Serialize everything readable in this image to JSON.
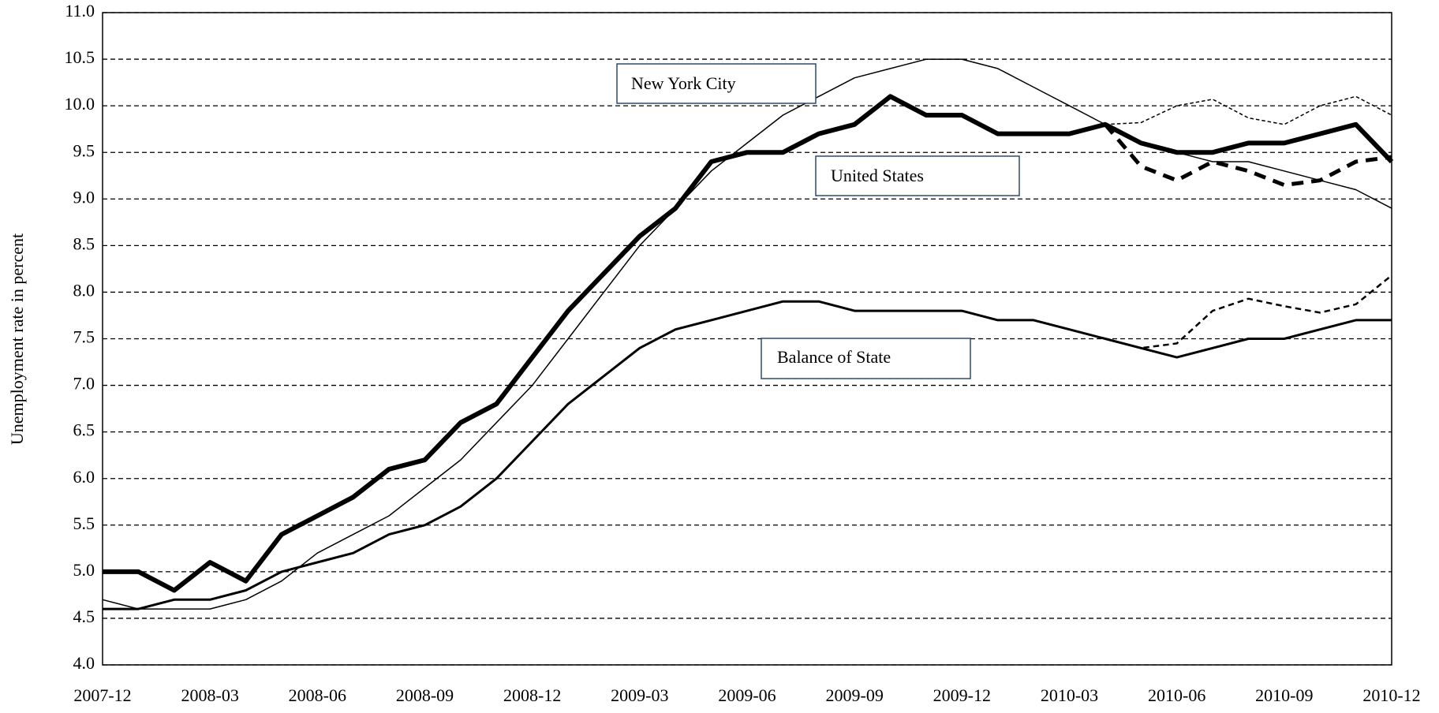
{
  "chart_data": {
    "type": "line",
    "y_label": "Unemployment rate in percent",
    "categories": [
      "2007-12",
      null,
      null,
      "2008-03",
      null,
      null,
      "2008-06",
      null,
      null,
      "2008-09",
      null,
      null,
      "2008-12",
      null,
      null,
      "2009-03",
      null,
      null,
      "2009-06",
      null,
      null,
      "2009-09",
      null,
      null,
      "2009-12",
      null,
      null,
      "2010-03",
      null,
      null,
      "2010-06",
      null,
      null,
      "2010-09",
      null,
      null,
      "2010-12"
    ],
    "series": [
      {
        "name": "United States",
        "color": "#000000",
        "width": 6,
        "dashed": false,
        "values": [
          5.0,
          5.0,
          4.8,
          5.1,
          4.9,
          5.4,
          5.6,
          5.8,
          6.1,
          6.2,
          6.6,
          6.8,
          7.3,
          7.8,
          8.2,
          8.6,
          8.9,
          9.4,
          9.5,
          9.5,
          9.7,
          9.8,
          10.1,
          9.9,
          9.9,
          9.7,
          9.7,
          9.7,
          9.8,
          9.6,
          9.5,
          9.5,
          9.6,
          9.6,
          9.7,
          9.8,
          9.4
        ]
      },
      {
        "name": "New York City",
        "color": "#000000",
        "width": 1.5,
        "dashed": false,
        "values": [
          4.7,
          4.6,
          4.6,
          4.6,
          4.7,
          4.9,
          5.2,
          5.4,
          5.6,
          5.9,
          6.2,
          6.6,
          7.0,
          7.5,
          8.0,
          8.5,
          8.9,
          9.3,
          9.6,
          9.9,
          10.1,
          10.3,
          10.4,
          10.5,
          10.5,
          10.4,
          10.2,
          10.0,
          9.8,
          9.6,
          9.5,
          9.4,
          9.4,
          9.3,
          9.2,
          9.1,
          8.9
        ]
      },
      {
        "name": "Balance of State",
        "color": "#000000",
        "width": 3,
        "dashed": false,
        "values": [
          4.6,
          4.6,
          4.7,
          4.7,
          4.8,
          5.0,
          5.1,
          5.2,
          5.4,
          5.5,
          5.7,
          6.0,
          6.4,
          6.8,
          7.1,
          7.4,
          7.6,
          7.7,
          7.8,
          7.9,
          7.9,
          7.8,
          7.8,
          7.8,
          7.8,
          7.7,
          7.7,
          7.6,
          7.5,
          7.4,
          7.3,
          7.4,
          7.5,
          7.5,
          7.6,
          7.7,
          7.7
        ]
      },
      {
        "color": "#000000",
        "width": 5,
        "dashed": true,
        "values": [
          null,
          null,
          null,
          null,
          null,
          null,
          null,
          null,
          null,
          null,
          null,
          null,
          null,
          null,
          null,
          null,
          null,
          null,
          null,
          null,
          null,
          null,
          null,
          null,
          null,
          null,
          null,
          null,
          9.8,
          9.35,
          9.2,
          9.4,
          9.3,
          9.15,
          9.2,
          9.4,
          9.45
        ]
      },
      {
        "color": "#000000",
        "width": 1.5,
        "dashed": true,
        "values": [
          null,
          null,
          null,
          null,
          null,
          null,
          null,
          null,
          null,
          null,
          null,
          null,
          null,
          null,
          null,
          null,
          null,
          null,
          null,
          null,
          null,
          null,
          null,
          null,
          null,
          null,
          null,
          null,
          9.8,
          9.82,
          10.0,
          10.07,
          9.87,
          9.8,
          10.0,
          10.1,
          9.9
        ]
      },
      {
        "color": "#000000",
        "width": 2.5,
        "dashed": true,
        "values": [
          null,
          null,
          null,
          null,
          null,
          null,
          null,
          null,
          null,
          null,
          null,
          null,
          null,
          null,
          null,
          null,
          null,
          null,
          null,
          null,
          null,
          null,
          null,
          null,
          null,
          null,
          null,
          null,
          7.5,
          7.4,
          7.45,
          7.8,
          7.93,
          7.85,
          7.78,
          7.87,
          8.18
        ]
      }
    ],
    "ylim": [
      4,
      11
    ],
    "yticks": [
      {
        "value": 4,
        "label": "4.0"
      },
      4.5,
      {
        "value": 5,
        "label": "5.0"
      },
      5.5,
      {
        "value": 6,
        "label": "6.0"
      },
      6.5,
      {
        "value": 7,
        "label": "7.0"
      },
      7.5,
      {
        "value": 8,
        "label": "8.0"
      },
      8.5,
      {
        "value": 9,
        "label": "9.0"
      },
      9.5,
      {
        "value": 10,
        "label": "10.0"
      },
      10.5,
      {
        "value": 11,
        "label": "11.0"
      }
    ],
    "grid": true
  }
}
